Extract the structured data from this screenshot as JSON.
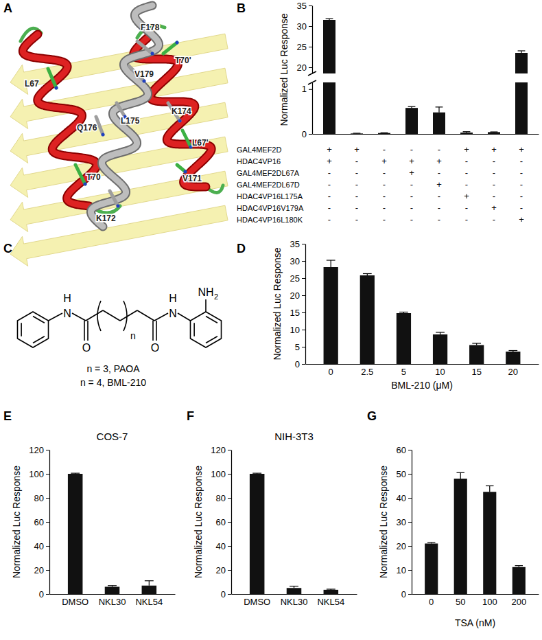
{
  "structure": {
    "panel_label": "A",
    "residues": [
      "F178",
      "V179",
      "T70'",
      "L67",
      "Q176",
      "L175",
      "K174",
      "T70",
      "L67'",
      "K172",
      "V171"
    ]
  },
  "chemical": {
    "panel_label": "C",
    "atom_h": "H",
    "atom_n": "N",
    "atom_o": "O",
    "amine": "NH",
    "amine_subscript": "2",
    "repeat": "n",
    "captions": [
      "n = 3, PAOA",
      "n = 4, BML-210"
    ]
  },
  "chart_data": [
    {
      "type": "bar",
      "panel_label": "B",
      "y_label": "Normalized Luc Response",
      "categories": [
        null,
        null,
        null,
        null,
        null,
        null,
        null,
        null
      ],
      "values": [
        31.5,
        0.01,
        0.02,
        0.58,
        0.48,
        0.03,
        0.04,
        23.5
      ],
      "errors": [
        0.3,
        0.005,
        0.005,
        0.03,
        0.12,
        0.02,
        0.005,
        0.5
      ],
      "color": "#111111",
      "ylim": [
        0,
        35
      ],
      "yticks": [
        0,
        1,
        20,
        25,
        30,
        35
      ],
      "axis_break": [
        1.15,
        18.5
      ],
      "table": {
        "rows": [
          {
            "label": "GAL4MEF2D",
            "cells": [
              "+",
              "+",
              "-",
              "-",
              "-",
              "+",
              "+",
              "+"
            ]
          },
          {
            "label": "HDAC4VP16",
            "cells": [
              "+",
              "-",
              "+",
              "+",
              "+",
              "-",
              "-",
              "-"
            ]
          },
          {
            "label": "GAL4MEF2DL67A",
            "cells": [
              "-",
              "-",
              "-",
              "+",
              "-",
              "-",
              "-",
              "-"
            ]
          },
          {
            "label": "GAL4MEF2DL67D",
            "cells": [
              "-",
              "-",
              "-",
              "-",
              "+",
              "-",
              "-",
              "-"
            ]
          },
          {
            "label": "HDAC4VP16L175A",
            "cells": [
              "-",
              "-",
              "-",
              "-",
              "-",
              "+",
              "-",
              "-"
            ]
          },
          {
            "label": "HDAC4VP16V179A",
            "cells": [
              "-",
              "-",
              "-",
              "-",
              "-",
              "-",
              "+",
              "-"
            ]
          },
          {
            "label": "HDAC4VP16L180K",
            "cells": [
              "-",
              "-",
              "-",
              "-",
              "-",
              "-",
              "-",
              "+"
            ]
          }
        ]
      }
    },
    {
      "type": "bar",
      "panel_label": "D",
      "y_label": "Normalized Luc Response",
      "x_label": "BML-210 (μM)",
      "categories": [
        "0",
        "2.5",
        "5",
        "10",
        "15",
        "20"
      ],
      "values": [
        28.2,
        25.8,
        14.8,
        8.6,
        5.5,
        3.6
      ],
      "errors": [
        2.0,
        0.5,
        0.3,
        0.6,
        0.5,
        0.3
      ],
      "color": "#111111",
      "ylim": [
        0,
        35
      ],
      "yticks": [
        0,
        5,
        10,
        15,
        20,
        25,
        30,
        35
      ]
    },
    {
      "type": "bar",
      "panel_label": "E",
      "title": "COS-7",
      "y_label": "Normalized Luc Response",
      "categories": [
        "DMSO",
        "NKL30",
        "NKL54"
      ],
      "values": [
        100,
        6,
        7
      ],
      "errors": [
        0.5,
        1,
        4
      ],
      "color": "#111111",
      "ylim": [
        0,
        120
      ],
      "yticks": [
        0,
        20,
        40,
        60,
        80,
        100,
        120
      ]
    },
    {
      "type": "bar",
      "panel_label": "F",
      "title": "NIH-3T3",
      "y_label": "Normalized Luc Response",
      "categories": [
        "DMSO",
        "NKL30",
        "NKL54"
      ],
      "values": [
        100,
        5,
        3.5
      ],
      "errors": [
        0.5,
        1.5,
        0.5
      ],
      "color": "#111111",
      "ylim": [
        0,
        120
      ],
      "yticks": [
        0,
        20,
        40,
        60,
        80,
        100,
        120
      ]
    },
    {
      "type": "bar",
      "panel_label": "G",
      "y_label": "Normalized Luc Response",
      "x_label": "TSA (nM)",
      "categories": [
        "0",
        "50",
        "100",
        "200"
      ],
      "values": [
        21,
        48,
        42.5,
        11.2
      ],
      "errors": [
        0.4,
        2.5,
        2.5,
        0.6
      ],
      "color": "#111111",
      "ylim": [
        0,
        60
      ],
      "yticks": [
        0,
        10,
        20,
        30,
        40,
        50,
        60
      ]
    }
  ]
}
